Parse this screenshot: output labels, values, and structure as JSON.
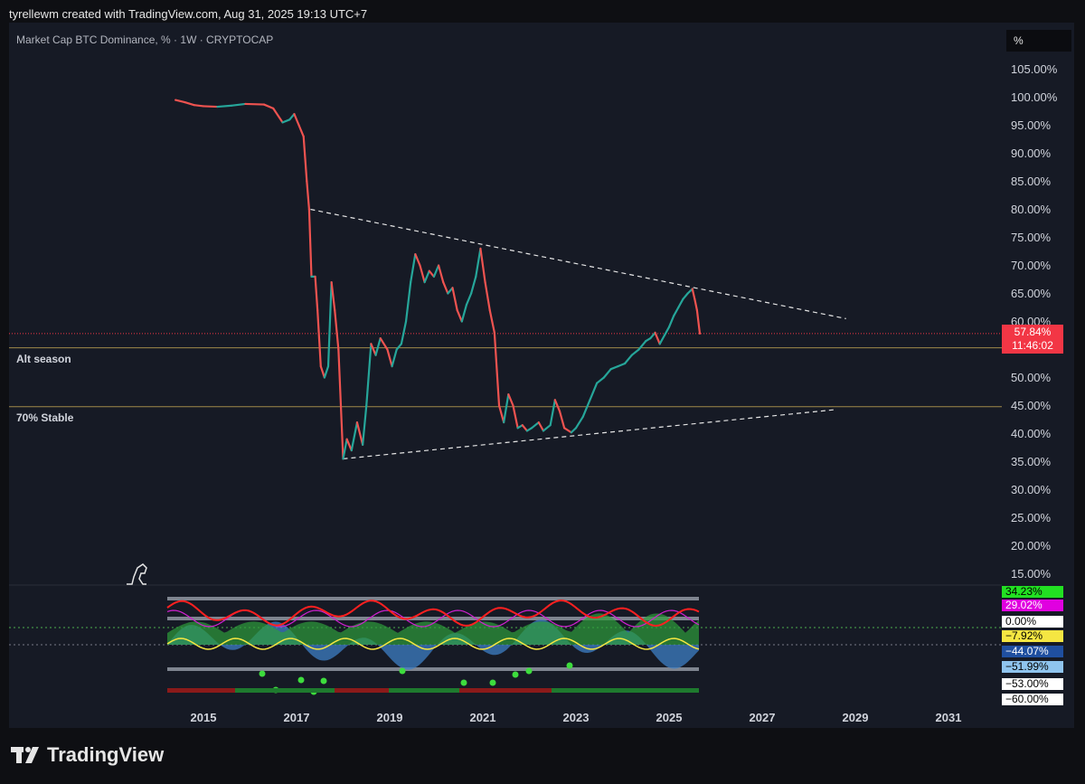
{
  "header": {
    "credit": "tyrellewm created with TradingView.com, Aug 31, 2025 19:13 UTC+7"
  },
  "symbol": {
    "title": "Market Cap BTC Dominance, % · 1W · CRYPTOCAP"
  },
  "unit_button": {
    "label": "%"
  },
  "price_badge": {
    "price": "57.84%",
    "countdown": "11:46:02",
    "color": "#f23645"
  },
  "horizontal_lines": [
    {
      "label": "Alt season",
      "value": 55.3
    },
    {
      "label": "70% Stable",
      "value": 44.8
    }
  ],
  "oscillator_badges": [
    {
      "text": "34.23%",
      "bg": "#22e022",
      "fg": "#000000"
    },
    {
      "text": "29.02%",
      "bg": "#e000e0",
      "fg": "#ffffff"
    },
    {
      "text": "0.00%",
      "bg": "#ffffff",
      "fg": "#000000"
    },
    {
      "text": "−7.92%",
      "bg": "#f5e642",
      "fg": "#000000"
    },
    {
      "text": "−44.07%",
      "bg": "#1f4fa0",
      "fg": "#ffffff"
    },
    {
      "text": "−51.99%",
      "bg": "#8fc4ee",
      "fg": "#000000"
    },
    {
      "text": "−53.00%",
      "bg": "#ffffff",
      "fg": "#000000"
    },
    {
      "text": "−60.00%",
      "bg": "#ffffff",
      "fg": "#000000"
    }
  ],
  "footer": {
    "brand": "TradingView"
  },
  "colors": {
    "up": "#26a69a",
    "down": "#ef5350",
    "background": "#161a25"
  },
  "chart_data": {
    "type": "line",
    "title": "Market Cap BTC Dominance, % · 1W · CRYPTOCAP",
    "x_ticks": [
      "2015",
      "2017",
      "2019",
      "2021",
      "2023",
      "2025",
      "2027",
      "2029",
      "2031"
    ],
    "y_ticks": [
      "105.00%",
      "100.00%",
      "95.00%",
      "90.00%",
      "85.00%",
      "80.00%",
      "75.00%",
      "70.00%",
      "65.00%",
      "60.00%",
      "50.00%",
      "45.00%",
      "40.00%",
      "35.00%",
      "30.00%",
      "25.00%",
      "20.00%",
      "15.00%"
    ],
    "ylim": [
      12,
      108
    ],
    "xlim": [
      2014.0,
      2032.0
    ],
    "series": [
      {
        "values": [
          [
            2014.4,
            99.5
          ],
          [
            2014.6,
            99.1
          ],
          [
            2014.8,
            98.6
          ],
          [
            2015.0,
            98.4
          ],
          [
            2015.3,
            98.3
          ],
          [
            2015.6,
            98.5
          ],
          [
            2015.9,
            98.8
          ],
          [
            2016.3,
            98.7
          ],
          [
            2016.5,
            98.0
          ],
          [
            2016.7,
            95.5
          ],
          [
            2016.85,
            96.0
          ],
          [
            2016.95,
            97.0
          ],
          [
            2017.05,
            95.0
          ],
          [
            2017.15,
            93.0
          ],
          [
            2017.22,
            85.0
          ],
          [
            2017.27,
            80.0
          ],
          [
            2017.32,
            68.0
          ],
          [
            2017.4,
            68.0
          ],
          [
            2017.45,
            62.0
          ],
          [
            2017.52,
            52.0
          ],
          [
            2017.6,
            50.0
          ],
          [
            2017.68,
            52.0
          ],
          [
            2017.75,
            67.0
          ],
          [
            2017.82,
            62.0
          ],
          [
            2017.9,
            55.0
          ],
          [
            2018.0,
            35.5
          ],
          [
            2018.08,
            39.0
          ],
          [
            2018.18,
            37.0
          ],
          [
            2018.3,
            42.0
          ],
          [
            2018.42,
            38.0
          ],
          [
            2018.5,
            45.0
          ],
          [
            2018.6,
            56.0
          ],
          [
            2018.7,
            54.0
          ],
          [
            2018.8,
            57.0
          ],
          [
            2018.95,
            55.0
          ],
          [
            2019.05,
            52.0
          ],
          [
            2019.15,
            55.0
          ],
          [
            2019.25,
            56.0
          ],
          [
            2019.35,
            60.0
          ],
          [
            2019.45,
            67.0
          ],
          [
            2019.55,
            72.0
          ],
          [
            2019.65,
            70.0
          ],
          [
            2019.75,
            67.0
          ],
          [
            2019.85,
            69.0
          ],
          [
            2019.95,
            68.0
          ],
          [
            2020.05,
            70.0
          ],
          [
            2020.15,
            67.0
          ],
          [
            2020.25,
            65.0
          ],
          [
            2020.35,
            66.0
          ],
          [
            2020.45,
            62.0
          ],
          [
            2020.55,
            60.0
          ],
          [
            2020.65,
            63.0
          ],
          [
            2020.75,
            65.0
          ],
          [
            2020.85,
            68.0
          ],
          [
            2020.95,
            73.0
          ],
          [
            2021.05,
            67.0
          ],
          [
            2021.15,
            62.0
          ],
          [
            2021.25,
            58.0
          ],
          [
            2021.35,
            45.0
          ],
          [
            2021.45,
            42.0
          ],
          [
            2021.55,
            47.0
          ],
          [
            2021.65,
            45.0
          ],
          [
            2021.75,
            41.0
          ],
          [
            2021.85,
            41.5
          ],
          [
            2021.95,
            40.5
          ],
          [
            2022.05,
            41.0
          ],
          [
            2022.2,
            42.0
          ],
          [
            2022.3,
            40.5
          ],
          [
            2022.45,
            41.5
          ],
          [
            2022.55,
            46.0
          ],
          [
            2022.65,
            44.0
          ],
          [
            2022.75,
            41.0
          ],
          [
            2022.9,
            40.2
          ],
          [
            2023.0,
            41.0
          ],
          [
            2023.15,
            43.0
          ],
          [
            2023.3,
            46.0
          ],
          [
            2023.45,
            49.0
          ],
          [
            2023.6,
            50.0
          ],
          [
            2023.75,
            51.5
          ],
          [
            2023.9,
            52.0
          ],
          [
            2024.05,
            52.5
          ],
          [
            2024.2,
            54.0
          ],
          [
            2024.35,
            55.0
          ],
          [
            2024.5,
            56.5
          ],
          [
            2024.6,
            57.0
          ],
          [
            2024.7,
            58.0
          ],
          [
            2024.8,
            56.0
          ],
          [
            2024.9,
            57.5
          ],
          [
            2025.0,
            59.0
          ],
          [
            2025.1,
            61.0
          ],
          [
            2025.2,
            62.5
          ],
          [
            2025.3,
            64.0
          ],
          [
            2025.4,
            65.0
          ],
          [
            2025.5,
            65.8
          ],
          [
            2025.55,
            64.0
          ],
          [
            2025.6,
            62.0
          ],
          [
            2025.66,
            57.84
          ]
        ]
      }
    ],
    "trendlines": [
      {
        "style": "dashed",
        "from": [
          2017.3,
          80.0
        ],
        "to": [
          2028.8,
          60.5
        ]
      },
      {
        "style": "dashed",
        "from": [
          2018.0,
          35.5
        ],
        "to": [
          2028.6,
          44.3
        ]
      }
    ],
    "last_price": 57.84
  }
}
